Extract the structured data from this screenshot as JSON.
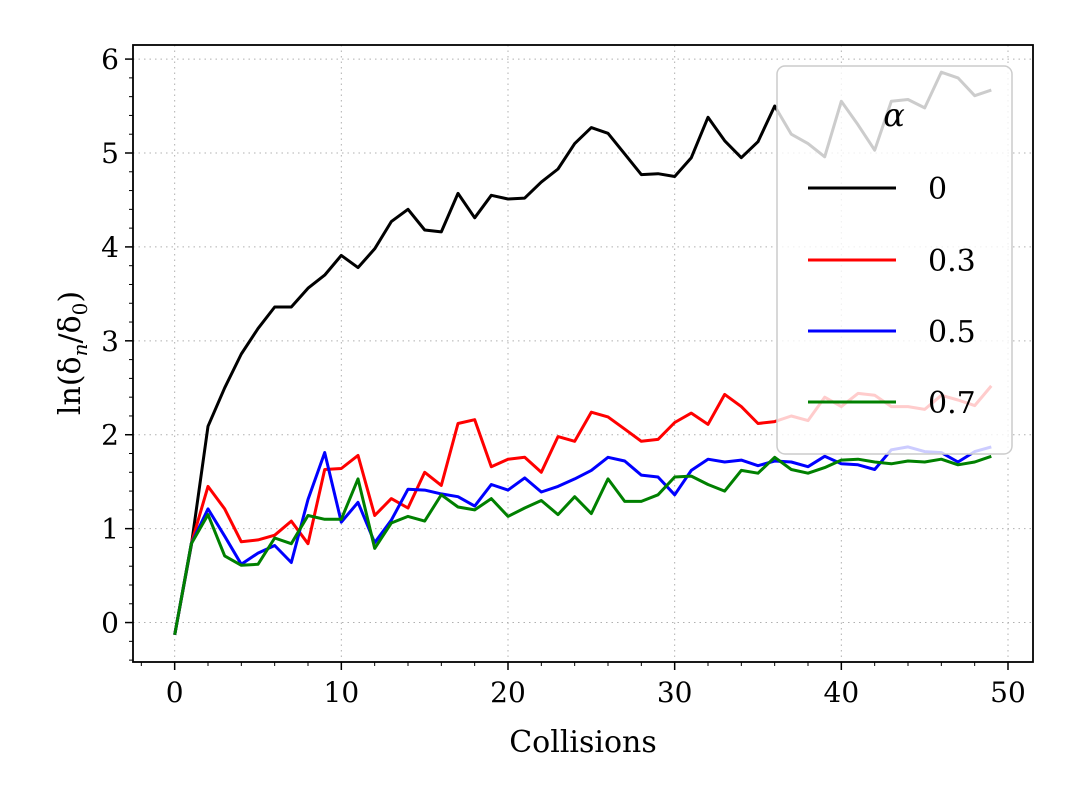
{
  "chart_data": {
    "type": "line",
    "xlabel": "Collisions",
    "ylabel": "ln(δ_n/δ_0)",
    "xlim": [
      -2.5,
      51.5
    ],
    "ylim": [
      -0.42,
      6.15
    ],
    "xticks": [
      0,
      10,
      20,
      30,
      40,
      50
    ],
    "yticks": [
      0,
      1,
      2,
      3,
      4,
      5,
      6
    ],
    "xtick_labels": [
      "0",
      "10",
      "20",
      "30",
      "40",
      "50"
    ],
    "ytick_labels": [
      "0",
      "1",
      "2",
      "3",
      "4",
      "5",
      "6"
    ],
    "grid": "dotted",
    "legend": {
      "title": "α",
      "placement": "top-right"
    },
    "x": [
      0,
      1,
      2,
      3,
      4,
      5,
      6,
      7,
      8,
      9,
      10,
      11,
      12,
      13,
      14,
      15,
      16,
      17,
      18,
      19,
      20,
      21,
      22,
      23,
      24,
      25,
      26,
      27,
      28,
      29,
      30,
      31,
      32,
      33,
      34,
      35,
      36,
      37,
      38,
      39,
      40,
      41,
      42,
      43,
      44,
      45,
      46,
      47,
      48,
      49
    ],
    "series": [
      {
        "name": "0",
        "color": "#000000",
        "values": [
          -0.13,
          0.82,
          2.09,
          2.5,
          2.86,
          3.13,
          3.36,
          3.36,
          3.56,
          3.7,
          3.91,
          3.78,
          3.98,
          4.27,
          4.4,
          4.18,
          4.16,
          4.57,
          4.31,
          4.55,
          4.51,
          4.52,
          4.69,
          4.83,
          5.1,
          5.27,
          5.21,
          4.99,
          4.77,
          4.78,
          4.75,
          4.95,
          5.38,
          5.13,
          4.95,
          5.12,
          5.5,
          5.2,
          5.1,
          4.96,
          5.55,
          5.3,
          5.03,
          5.55,
          5.57,
          5.48,
          5.86,
          5.8,
          5.61,
          5.67
        ]
      },
      {
        "name": "0.3",
        "color": "#ff0000",
        "values": [
          -0.13,
          0.84,
          1.45,
          1.21,
          0.86,
          0.88,
          0.93,
          1.08,
          0.84,
          1.63,
          1.64,
          1.78,
          1.14,
          1.32,
          1.22,
          1.6,
          1.46,
          2.12,
          2.16,
          1.66,
          1.74,
          1.76,
          1.6,
          1.98,
          1.93,
          2.24,
          2.19,
          2.06,
          1.93,
          1.95,
          2.13,
          2.23,
          2.11,
          2.43,
          2.3,
          2.12,
          2.14,
          2.2,
          2.15,
          2.4,
          2.3,
          2.44,
          2.42,
          2.3,
          2.3,
          2.27,
          2.42,
          2.37,
          2.31,
          2.52
        ]
      },
      {
        "name": "0.5",
        "color": "#0000ff",
        "values": [
          -0.13,
          0.84,
          1.21,
          0.92,
          0.62,
          0.74,
          0.82,
          0.64,
          1.31,
          1.81,
          1.07,
          1.28,
          0.85,
          1.09,
          1.42,
          1.41,
          1.37,
          1.34,
          1.24,
          1.47,
          1.41,
          1.54,
          1.39,
          1.45,
          1.53,
          1.62,
          1.76,
          1.72,
          1.57,
          1.55,
          1.36,
          1.62,
          1.74,
          1.71,
          1.73,
          1.67,
          1.72,
          1.71,
          1.66,
          1.77,
          1.69,
          1.68,
          1.63,
          1.84,
          1.87,
          1.82,
          1.81,
          1.71,
          1.82,
          1.87
        ]
      },
      {
        "name": "0.7",
        "color": "#008000",
        "values": [
          -0.13,
          0.84,
          1.15,
          0.71,
          0.61,
          0.62,
          0.9,
          0.84,
          1.14,
          1.1,
          1.1,
          1.53,
          0.79,
          1.06,
          1.13,
          1.08,
          1.36,
          1.23,
          1.2,
          1.32,
          1.13,
          1.22,
          1.3,
          1.15,
          1.34,
          1.16,
          1.53,
          1.29,
          1.29,
          1.36,
          1.55,
          1.56,
          1.47,
          1.4,
          1.62,
          1.59,
          1.76,
          1.63,
          1.59,
          1.65,
          1.73,
          1.74,
          1.71,
          1.69,
          1.72,
          1.71,
          1.74,
          1.68,
          1.71,
          1.77
        ]
      }
    ]
  }
}
